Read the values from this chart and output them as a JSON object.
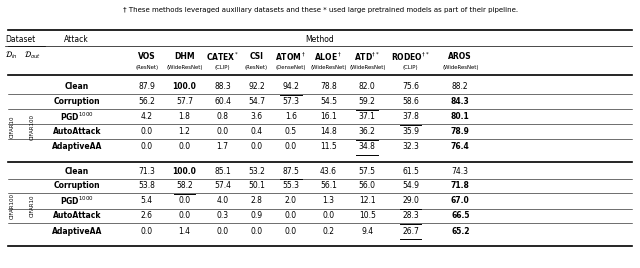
{
  "footnote": "† These methods leveraged auxiliary datasets and these * used large pretrained models as part of their pipeline.",
  "section1_din": "CIFAR10",
  "section1_dout": "CIFAR100",
  "section2_din": "CIFAR100",
  "section2_dout": "CIFAR10",
  "data_s1": [
    [
      87.9,
      100.0,
      88.3,
      92.2,
      94.2,
      78.8,
      82.0,
      75.6,
      88.2
    ],
    [
      56.2,
      57.7,
      60.4,
      54.7,
      57.3,
      54.5,
      59.2,
      58.6,
      84.3
    ],
    [
      4.2,
      1.8,
      0.8,
      3.6,
      1.6,
      16.1,
      37.1,
      37.8,
      80.1
    ],
    [
      0.0,
      1.2,
      0.0,
      0.4,
      0.5,
      14.8,
      36.2,
      35.9,
      78.9
    ],
    [
      0.0,
      0.0,
      1.7,
      0.0,
      0.0,
      11.5,
      34.8,
      32.3,
      76.4
    ]
  ],
  "data_s2": [
    [
      71.3,
      100.0,
      85.1,
      53.2,
      87.5,
      43.6,
      57.5,
      61.5,
      74.3
    ],
    [
      53.8,
      58.2,
      57.4,
      50.1,
      55.3,
      56.1,
      56.0,
      54.9,
      71.8
    ],
    [
      5.4,
      0.0,
      4.0,
      2.8,
      2.0,
      1.3,
      12.1,
      29.0,
      67.0
    ],
    [
      2.6,
      0.0,
      0.3,
      0.9,
      0.0,
      0.0,
      10.5,
      28.3,
      66.5
    ],
    [
      0.0,
      1.4,
      0.0,
      0.0,
      0.0,
      0.2,
      9.4,
      26.7,
      65.2
    ]
  ],
  "bold_s1": [
    [
      false,
      true,
      false,
      false,
      false,
      false,
      false,
      false,
      false
    ],
    [
      false,
      false,
      false,
      false,
      false,
      false,
      false,
      false,
      true
    ],
    [
      false,
      false,
      false,
      false,
      false,
      false,
      false,
      false,
      true
    ],
    [
      false,
      false,
      false,
      false,
      false,
      false,
      false,
      false,
      true
    ],
    [
      false,
      false,
      false,
      false,
      false,
      false,
      false,
      false,
      true
    ]
  ],
  "bold_s2": [
    [
      false,
      true,
      false,
      false,
      false,
      false,
      false,
      false,
      false
    ],
    [
      false,
      false,
      false,
      false,
      false,
      false,
      false,
      false,
      true
    ],
    [
      false,
      false,
      false,
      false,
      false,
      false,
      false,
      false,
      true
    ],
    [
      false,
      false,
      false,
      false,
      false,
      false,
      false,
      false,
      true
    ],
    [
      false,
      false,
      false,
      false,
      false,
      false,
      false,
      false,
      true
    ]
  ],
  "underline_s1": [
    [
      false,
      false,
      false,
      false,
      true,
      false,
      false,
      false,
      false
    ],
    [
      false,
      false,
      false,
      false,
      false,
      false,
      true,
      false,
      false
    ],
    [
      false,
      false,
      false,
      false,
      false,
      false,
      false,
      true,
      false
    ],
    [
      false,
      false,
      false,
      false,
      false,
      false,
      true,
      false,
      false
    ],
    [
      false,
      false,
      false,
      false,
      false,
      false,
      true,
      false,
      false
    ]
  ],
  "underline_s2": [
    [
      false,
      false,
      false,
      false,
      true,
      false,
      false,
      false,
      false
    ],
    [
      false,
      true,
      false,
      false,
      false,
      false,
      false,
      false,
      false
    ],
    [
      false,
      false,
      false,
      false,
      false,
      false,
      false,
      true,
      false
    ],
    [
      false,
      false,
      false,
      false,
      false,
      false,
      false,
      true,
      false
    ],
    [
      false,
      false,
      false,
      false,
      false,
      false,
      false,
      true,
      false
    ]
  ],
  "method_sub": [
    "(ResNet)",
    "(WideResNet)",
    "(CLIP)",
    "(ResNet)",
    "(DenseNet)",
    "(WideResNet)",
    "(WideResNet)",
    "(CLIP)",
    "(WideResNet)"
  ],
  "bg_color": "#ffffff"
}
